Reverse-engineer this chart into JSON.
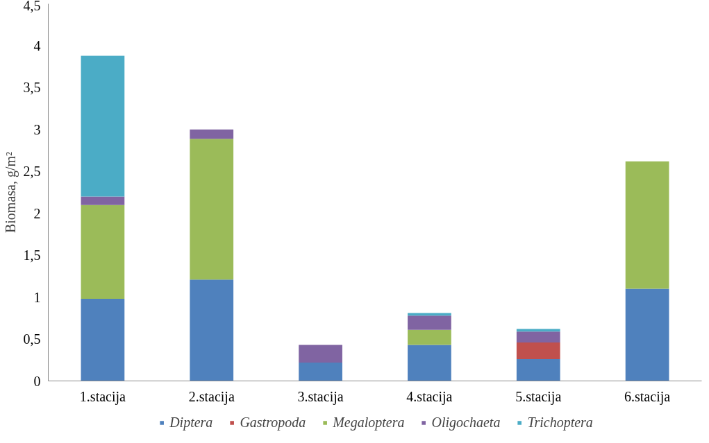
{
  "chart_data": {
    "type": "bar",
    "stacked": true,
    "ylabel": "Biomasa, g/m²",
    "categories": [
      "1.stacija",
      "2.stacija",
      "3.stacija",
      "4.stacija",
      "5.stacija",
      "6.stacija"
    ],
    "series": [
      {
        "name": "Diptera",
        "color": "#4f81bd",
        "values": [
          0.98,
          1.21,
          0.22,
          0.43,
          0.26,
          1.1
        ]
      },
      {
        "name": "Gastropoda",
        "color": "#c0504d",
        "values": [
          null,
          null,
          null,
          null,
          0.2,
          null
        ]
      },
      {
        "name": "Megaloptera",
        "color": "#9bbb59",
        "values": [
          1.12,
          1.68,
          null,
          0.18,
          null,
          1.52
        ]
      },
      {
        "name": "Oligochaeta",
        "color": "#8064a2",
        "values": [
          0.1,
          0.11,
          0.21,
          0.17,
          0.13,
          null
        ]
      },
      {
        "name": "Trichoptera",
        "color": "#4bacc6",
        "values": [
          1.68,
          null,
          null,
          0.03,
          0.03,
          null
        ]
      }
    ],
    "ylim": [
      0,
      4.5
    ],
    "yticks": [
      0,
      {
        "value": 0.5,
        "label": "0,5"
      },
      1,
      {
        "value": 1.5,
        "label": "1,5"
      },
      2,
      {
        "value": 2.5,
        "label": "2,5"
      },
      3,
      {
        "value": 3.5,
        "label": "3,5"
      },
      4,
      {
        "value": 4.5,
        "label": "4,5"
      }
    ],
    "grid": false,
    "legend": "bottom"
  }
}
